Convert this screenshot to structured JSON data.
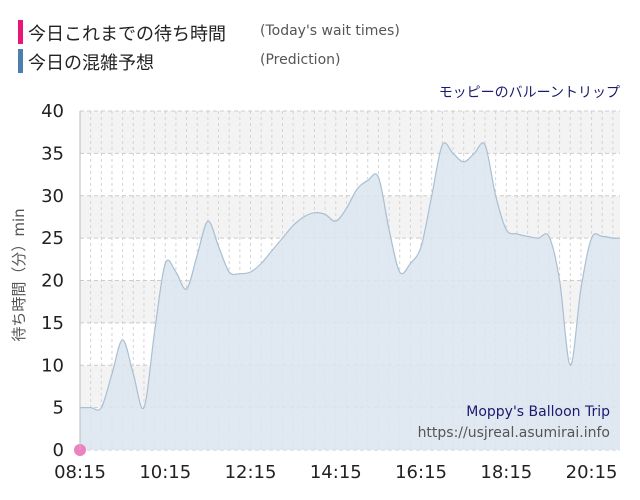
{
  "legend": {
    "items": [
      {
        "label": "今日これまでの待ち時間",
        "note": "(Today's wait times)",
        "color": "#e8157a"
      },
      {
        "label": "今日の混雑予想",
        "note": "(Prediction)",
        "color": "#4a7fb0"
      }
    ]
  },
  "attraction_name_jp": "モッピーのバルーントリップ",
  "attraction_name_en": "Moppy's Balloon Trip",
  "source": "https://usjreal.asumirai.info",
  "chart_data": {
    "type": "area",
    "title": "",
    "xlabel": "",
    "ylabel": "待ち時間（分）min",
    "ylim": [
      0,
      40
    ],
    "yticks": [
      0,
      5,
      10,
      15,
      20,
      25,
      30,
      35,
      40
    ],
    "xlim": [
      "08:15",
      "20:55"
    ],
    "xticks": [
      "08:15",
      "10:15",
      "12:15",
      "14:15",
      "16:15",
      "18:15",
      "20:15"
    ],
    "grid": true,
    "series": [
      {
        "key": "prediction",
        "color": "#4a7fb0",
        "fill": "#dae5ee",
        "x": [
          "08:15",
          "08:30",
          "08:45",
          "09:00",
          "09:15",
          "09:30",
          "09:45",
          "10:00",
          "10:15",
          "10:30",
          "10:45",
          "11:00",
          "11:15",
          "11:30",
          "11:45",
          "12:00",
          "12:15",
          "12:30",
          "12:45",
          "13:00",
          "13:15",
          "13:30",
          "13:45",
          "14:00",
          "14:15",
          "14:30",
          "14:45",
          "15:00",
          "15:15",
          "15:30",
          "15:45",
          "16:00",
          "16:15",
          "16:30",
          "16:45",
          "17:00",
          "17:15",
          "17:30",
          "17:45",
          "18:00",
          "18:15",
          "18:30",
          "18:45",
          "19:00",
          "19:15",
          "19:30",
          "19:45",
          "20:00",
          "20:15",
          "20:30",
          "20:45",
          "20:55"
        ],
        "values": [
          5,
          5,
          5,
          9,
          13,
          9,
          5,
          14,
          22,
          21,
          19,
          23,
          27,
          24,
          21,
          20.8,
          21,
          22,
          23.5,
          25,
          26.5,
          27.5,
          28,
          27.8,
          27,
          28.5,
          30.8,
          31.8,
          32.2,
          26,
          21,
          22,
          24,
          30,
          36,
          35,
          34,
          35,
          36,
          30,
          26,
          25.5,
          25.2,
          25,
          25.2,
          20,
          10,
          19,
          25,
          25.2,
          25,
          25
        ]
      },
      {
        "key": "today",
        "color": "#ee82c0",
        "x": [
          "08:15"
        ],
        "values": [
          0
        ]
      }
    ]
  }
}
